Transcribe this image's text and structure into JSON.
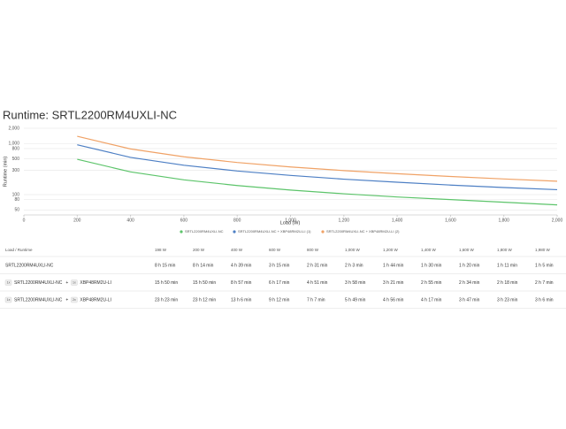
{
  "chart_data": {
    "type": "line",
    "title": "Runtime: SRTL2200RM4UXLI-NC",
    "x_label": "Load (W)",
    "y_label": "Runtime (min)",
    "x": [
      200,
      400,
      600,
      800,
      1000,
      1200,
      1400,
      1600,
      1800,
      2000
    ],
    "series": [
      {
        "name": "SRTL2200RM4UXLI-NC",
        "color": "#5cc46a",
        "values": [
          494,
          279,
          195,
          151,
          123,
          104,
          90,
          80,
          71,
          63
        ]
      },
      {
        "name": "SRTL2200RM4UXLI-NC + XBP48RM2U-LI (1)",
        "color": "#4d7fc4",
        "values": [
          950,
          537,
          377,
          291,
          238,
          201,
          175,
          154,
          138,
          125
        ]
      },
      {
        "name": "SRTL2200RM4UXLI-NC + XBP48RM2U-LI (2)",
        "color": "#f0a266",
        "values": [
          1392,
          786,
          552,
          427,
          349,
          296,
          257,
          227,
          203,
          183
        ]
      }
    ],
    "xlim": [
      0,
      2000
    ],
    "xticks": [
      0,
      200,
      400,
      600,
      800,
      {
        "value": 1000,
        "label": "1,000"
      },
      {
        "value": 1200,
        "label": "1,200"
      },
      {
        "value": 1400,
        "label": "1,400"
      },
      {
        "value": 1600,
        "label": "1,600"
      },
      {
        "value": 1800,
        "label": "1,800"
      },
      {
        "value": 2000,
        "label": "2,000"
      }
    ],
    "ylim": [
      40,
      2000
    ],
    "yticks": [
      50,
      80,
      100,
      300,
      500,
      800,
      {
        "value": 1000,
        "label": "1,000"
      },
      {
        "value": 2000,
        "label": "2,000"
      }
    ],
    "log_scale": true,
    "grid": true,
    "legend": "bottom"
  },
  "table": {
    "header": [
      "Load / Runtime",
      "198 W",
      "200 W",
      "400 W",
      "600 W",
      "800 W",
      "1,000 W",
      "1,200 W",
      "1,400 W",
      "1,600 W",
      "1,800 W",
      "1,980 W"
    ],
    "joiner": "+",
    "rows": [
      {
        "items": [
          {
            "name": "SRTL2200RM4UXLI-NC"
          }
        ],
        "cells": [
          "8 h 15 min",
          "8 h 14 min",
          "4 h 39 min",
          "3 h 15 min",
          "2 h 31 min",
          "2 h 3 min",
          "1 h 44 min",
          "1 h 30 min",
          "1 h 20 min",
          "1 h 11 min",
          "1 h 5 min"
        ]
      },
      {
        "items": [
          {
            "qty": "1x",
            "name": "SRTL2200RM4UXLI-NC"
          },
          {
            "qty": "1x",
            "name": "XBP48RM2U-LI"
          }
        ],
        "cells": [
          "15 h 50 min",
          "15 h 50 min",
          "8 h 57 min",
          "6 h 17 min",
          "4 h 51 min",
          "3 h 58 min",
          "3 h 21 min",
          "2 h 55 min",
          "2 h 34 min",
          "2 h 18 min",
          "2 h 7 min"
        ]
      },
      {
        "items": [
          {
            "qty": "1x",
            "name": "SRTL2200RM4UXLI-NC"
          },
          {
            "qty": "2x",
            "name": "XBP48RM2U-LI"
          }
        ],
        "cells": [
          "23 h 23 min",
          "23 h 12 min",
          "13 h 6 min",
          "9 h 12 min",
          "7 h 7 min",
          "5 h 49 min",
          "4 h 56 min",
          "4 h 17 min",
          "3 h 47 min",
          "3 h 23 min",
          "3 h 6 min"
        ]
      }
    ]
  }
}
